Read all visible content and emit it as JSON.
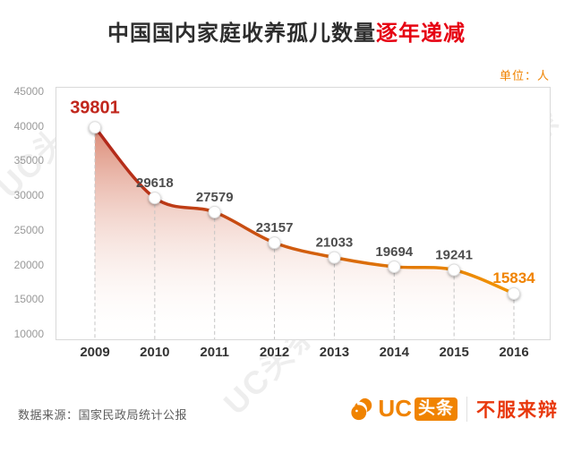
{
  "title": {
    "main": "中国国内家庭收养孤儿数量",
    "highlight": "逐年递减"
  },
  "unit_label": "单位：人",
  "watermark": "UC头条",
  "colors": {
    "title_highlight": "#e60012",
    "unit_label": "#f08300",
    "brand_orange": "#f08300",
    "slogan_red": "#e8380d"
  },
  "chart_data": {
    "type": "area",
    "title": "中国国内家庭收养孤儿数量逐年递减",
    "x": [
      "2009",
      "2010",
      "2011",
      "2012",
      "2013",
      "2014",
      "2015",
      "2016"
    ],
    "values": [
      39801,
      29618,
      27579,
      23157,
      21033,
      19694,
      19241,
      15834
    ],
    "ylim": [
      10000,
      45000
    ],
    "yticks": [
      45000,
      40000,
      35000,
      30000,
      25000,
      20000,
      15000,
      10000
    ],
    "xlabel": "",
    "ylabel": "",
    "unit": "人",
    "grid": false,
    "legend": "none",
    "colors": {
      "line_start": "#b1261b",
      "line_end": "#f39500",
      "area_top": "rgba(197,64,30,0.62)",
      "area_bottom": "rgba(255,250,246,0)",
      "first_label": "#c1271d",
      "last_label": "#f08300",
      "mid_label": "#4d4d4d",
      "dash": "#c4c4c4",
      "tick": "#999999",
      "year": "#333333"
    }
  },
  "footer": {
    "source": "数据来源：国家民政局统计公报",
    "brand_uc": "UC",
    "brand_toutiao": "头条",
    "brand_slogan": "不服来辩"
  }
}
